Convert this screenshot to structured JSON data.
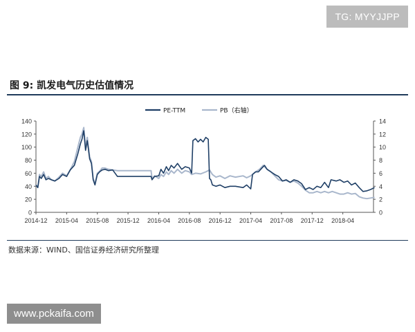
{
  "watermark": "TG: MYYJJPP",
  "site_tag": "www.pckaifa.com",
  "figure_title": "图 9:  凯发电气历史估值情况",
  "source_note": "数据来源：WIND、国信证券经济研究所整理",
  "chart_data": {
    "type": "line",
    "title": "",
    "xlabel": "",
    "ylabel": "",
    "x_tick_labels": [
      "2014-12",
      "2015-04",
      "2015-08",
      "2015-12",
      "2016-04",
      "2016-08",
      "2016-12",
      "2017-04",
      "2017-08",
      "2017-12",
      "2018-04"
    ],
    "x_range": [
      "2014-12",
      "2018-08"
    ],
    "ylim_left": [
      0,
      140
    ],
    "ylim_right": [
      0,
      14
    ],
    "y_ticks_left": [
      0,
      20,
      40,
      60,
      80,
      100,
      120,
      140
    ],
    "y_ticks_right": [
      0,
      2,
      4,
      6,
      8,
      10,
      12,
      14
    ],
    "legend_position": "top-center",
    "grid": false,
    "series": [
      {
        "name": "PE-TTM",
        "axis": "left",
        "color": "#1f3f66",
        "points": [
          [
            "2014-12-01",
            42
          ],
          [
            "2014-12-08",
            38
          ],
          [
            "2014-12-15",
            55
          ],
          [
            "2014-12-22",
            52
          ],
          [
            "2015-01-01",
            58
          ],
          [
            "2015-01-10",
            50
          ],
          [
            "2015-01-20",
            52
          ],
          [
            "2015-02-01",
            50
          ],
          [
            "2015-02-15",
            48
          ],
          [
            "2015-03-01",
            52
          ],
          [
            "2015-03-15",
            58
          ],
          [
            "2015-04-01",
            55
          ],
          [
            "2015-04-15",
            65
          ],
          [
            "2015-05-01",
            72
          ],
          [
            "2015-05-15",
            90
          ],
          [
            "2015-05-25",
            105
          ],
          [
            "2015-06-01",
            112
          ],
          [
            "2015-06-08",
            125
          ],
          [
            "2015-06-15",
            95
          ],
          [
            "2015-06-22",
            110
          ],
          [
            "2015-07-01",
            82
          ],
          [
            "2015-07-08",
            75
          ],
          [
            "2015-07-15",
            50
          ],
          [
            "2015-07-22",
            42
          ],
          [
            "2015-08-01",
            58
          ],
          [
            "2015-08-10",
            62
          ],
          [
            "2015-08-20",
            65
          ],
          [
            "2015-09-01",
            66
          ],
          [
            "2015-09-15",
            64
          ],
          [
            "2015-10-01",
            65
          ],
          [
            "2015-10-20",
            55
          ],
          [
            "2015-11-10",
            55
          ],
          [
            "2015-12-01",
            55
          ],
          [
            "2015-12-20",
            55
          ],
          [
            "2016-01-10",
            55
          ],
          [
            "2016-02-01",
            55
          ],
          [
            "2016-03-01",
            55
          ],
          [
            "2016-03-05",
            50
          ],
          [
            "2016-03-15",
            55
          ],
          [
            "2016-04-01",
            56
          ],
          [
            "2016-04-10",
            66
          ],
          [
            "2016-04-20",
            60
          ],
          [
            "2016-05-01",
            70
          ],
          [
            "2016-05-10",
            64
          ],
          [
            "2016-05-20",
            72
          ],
          [
            "2016-06-01",
            68
          ],
          [
            "2016-06-15",
            75
          ],
          [
            "2016-07-01",
            66
          ],
          [
            "2016-07-15",
            70
          ],
          [
            "2016-08-01",
            68
          ],
          [
            "2016-08-10",
            60
          ],
          [
            "2016-08-15",
            110
          ],
          [
            "2016-08-25",
            113
          ],
          [
            "2016-09-05",
            108
          ],
          [
            "2016-09-15",
            112
          ],
          [
            "2016-09-25",
            108
          ],
          [
            "2016-10-05",
            115
          ],
          [
            "2016-10-15",
            112
          ],
          [
            "2016-10-20",
            52
          ],
          [
            "2016-10-25",
            50
          ],
          [
            "2016-11-01",
            42
          ],
          [
            "2016-11-15",
            40
          ],
          [
            "2016-12-01",
            42
          ],
          [
            "2016-12-20",
            38
          ],
          [
            "2017-01-10",
            40
          ],
          [
            "2017-02-01",
            40
          ],
          [
            "2017-03-01",
            38
          ],
          [
            "2017-03-15",
            42
          ],
          [
            "2017-04-01",
            36
          ],
          [
            "2017-04-08",
            58
          ],
          [
            "2017-04-20",
            62
          ],
          [
            "2017-05-01",
            62
          ],
          [
            "2017-05-15",
            68
          ],
          [
            "2017-05-25",
            72
          ],
          [
            "2017-06-05",
            66
          ],
          [
            "2017-06-20",
            62
          ],
          [
            "2017-07-05",
            58
          ],
          [
            "2017-07-20",
            55
          ],
          [
            "2017-08-05",
            48
          ],
          [
            "2017-08-20",
            50
          ],
          [
            "2017-09-05",
            46
          ],
          [
            "2017-09-20",
            50
          ],
          [
            "2017-10-05",
            48
          ],
          [
            "2017-10-20",
            44
          ],
          [
            "2017-11-05",
            35
          ],
          [
            "2017-11-20",
            38
          ],
          [
            "2017-12-05",
            35
          ],
          [
            "2017-12-20",
            40
          ],
          [
            "2018-01-05",
            38
          ],
          [
            "2018-01-20",
            46
          ],
          [
            "2018-02-05",
            38
          ],
          [
            "2018-02-15",
            50
          ],
          [
            "2018-03-05",
            48
          ],
          [
            "2018-03-20",
            50
          ],
          [
            "2018-04-05",
            46
          ],
          [
            "2018-04-20",
            48
          ],
          [
            "2018-05-05",
            42
          ],
          [
            "2018-05-20",
            45
          ],
          [
            "2018-06-05",
            38
          ],
          [
            "2018-06-20",
            32
          ],
          [
            "2018-07-05",
            33
          ],
          [
            "2018-07-20",
            35
          ],
          [
            "2018-08-05",
            38
          ]
        ]
      },
      {
        "name": "PB（右轴）",
        "axis": "right",
        "color": "#a9b7cc",
        "points": [
          [
            "2014-12-01",
            4.2
          ],
          [
            "2014-12-08",
            3.8
          ],
          [
            "2014-12-15",
            5.8
          ],
          [
            "2014-12-22",
            5.5
          ],
          [
            "2015-01-01",
            6.2
          ],
          [
            "2015-01-10",
            5.2
          ],
          [
            "2015-01-20",
            5.5
          ],
          [
            "2015-02-01",
            5.0
          ],
          [
            "2015-02-15",
            4.8
          ],
          [
            "2015-03-01",
            5.4
          ],
          [
            "2015-03-15",
            6.0
          ],
          [
            "2015-04-01",
            5.6
          ],
          [
            "2015-04-15",
            6.5
          ],
          [
            "2015-05-01",
            7.8
          ],
          [
            "2015-05-15",
            10.0
          ],
          [
            "2015-05-25",
            11.5
          ],
          [
            "2015-06-01",
            12.0
          ],
          [
            "2015-06-08",
            13.0
          ],
          [
            "2015-06-15",
            10.0
          ],
          [
            "2015-06-22",
            11.5
          ],
          [
            "2015-07-01",
            8.5
          ],
          [
            "2015-07-08",
            7.8
          ],
          [
            "2015-07-15",
            5.2
          ],
          [
            "2015-07-22",
            4.4
          ],
          [
            "2015-08-01",
            6.0
          ],
          [
            "2015-08-10",
            6.3
          ],
          [
            "2015-08-20",
            6.8
          ],
          [
            "2015-09-01",
            6.8
          ],
          [
            "2015-09-15",
            6.6
          ],
          [
            "2015-10-01",
            6.5
          ],
          [
            "2015-10-20",
            6.4
          ],
          [
            "2015-11-10",
            6.4
          ],
          [
            "2015-12-01",
            6.4
          ],
          [
            "2015-12-20",
            6.4
          ],
          [
            "2016-01-10",
            6.4
          ],
          [
            "2016-02-01",
            6.4
          ],
          [
            "2016-03-01",
            6.4
          ],
          [
            "2016-03-05",
            5.2
          ],
          [
            "2016-03-15",
            5.6
          ],
          [
            "2016-04-01",
            5.2
          ],
          [
            "2016-04-10",
            5.8
          ],
          [
            "2016-04-20",
            5.5
          ],
          [
            "2016-05-01",
            6.2
          ],
          [
            "2016-05-10",
            5.8
          ],
          [
            "2016-05-20",
            6.4
          ],
          [
            "2016-06-01",
            6.0
          ],
          [
            "2016-06-15",
            6.6
          ],
          [
            "2016-07-01",
            6.0
          ],
          [
            "2016-07-15",
            6.4
          ],
          [
            "2016-08-01",
            6.2
          ],
          [
            "2016-08-10",
            5.8
          ],
          [
            "2016-08-25",
            6.0
          ],
          [
            "2016-09-15",
            5.9
          ],
          [
            "2016-10-05",
            6.2
          ],
          [
            "2016-10-20",
            6.5
          ],
          [
            "2016-11-01",
            5.8
          ],
          [
            "2016-11-15",
            5.4
          ],
          [
            "2016-12-01",
            5.6
          ],
          [
            "2016-12-20",
            5.2
          ],
          [
            "2017-01-10",
            5.6
          ],
          [
            "2017-02-01",
            5.4
          ],
          [
            "2017-03-01",
            5.6
          ],
          [
            "2017-03-15",
            5.3
          ],
          [
            "2017-04-01",
            5.6
          ],
          [
            "2017-04-20",
            6.2
          ],
          [
            "2017-05-05",
            6.6
          ],
          [
            "2017-05-20",
            7.2
          ],
          [
            "2017-06-05",
            6.6
          ],
          [
            "2017-06-20",
            6.2
          ],
          [
            "2017-07-05",
            5.6
          ],
          [
            "2017-07-20",
            5.0
          ],
          [
            "2017-08-05",
            4.8
          ],
          [
            "2017-08-20",
            4.9
          ],
          [
            "2017-09-05",
            4.6
          ],
          [
            "2017-09-20",
            4.8
          ],
          [
            "2017-10-05",
            4.5
          ],
          [
            "2017-10-20",
            4.0
          ],
          [
            "2017-11-05",
            3.4
          ],
          [
            "2017-11-20",
            3.0
          ],
          [
            "2017-12-05",
            3.0
          ],
          [
            "2017-12-20",
            3.2
          ],
          [
            "2018-01-05",
            3.0
          ],
          [
            "2018-01-20",
            3.2
          ],
          [
            "2018-02-05",
            3.0
          ],
          [
            "2018-02-20",
            3.2
          ],
          [
            "2018-03-05",
            3.0
          ],
          [
            "2018-03-20",
            2.8
          ],
          [
            "2018-04-05",
            2.8
          ],
          [
            "2018-04-20",
            3.0
          ],
          [
            "2018-05-05",
            2.8
          ],
          [
            "2018-05-20",
            2.9
          ],
          [
            "2018-06-05",
            2.4
          ],
          [
            "2018-06-20",
            2.2
          ],
          [
            "2018-07-05",
            2.1
          ],
          [
            "2018-07-20",
            2.2
          ],
          [
            "2018-08-05",
            2.3
          ]
        ]
      }
    ]
  }
}
